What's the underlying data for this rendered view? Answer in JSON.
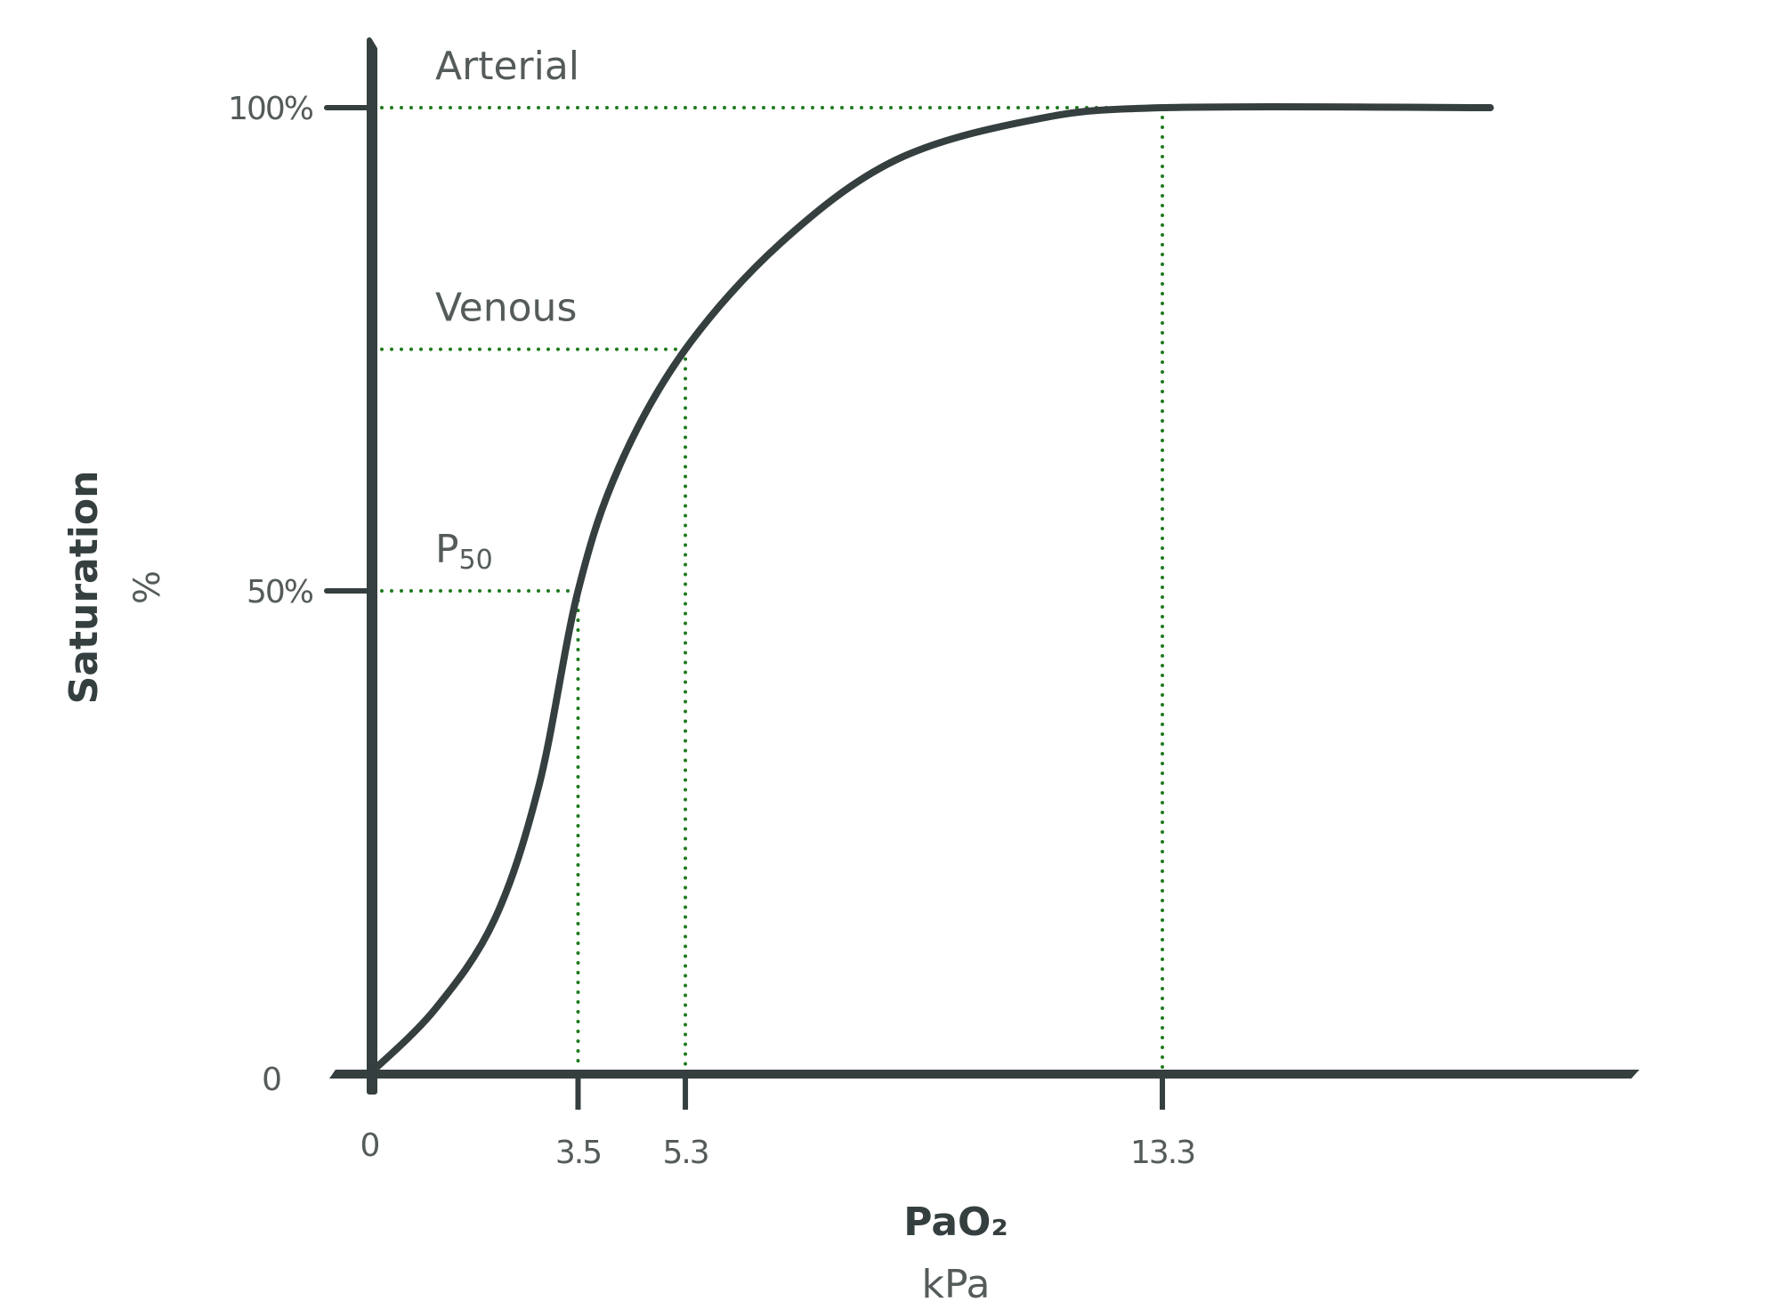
{
  "chart_data": {
    "type": "line",
    "x_label": "PaO₂",
    "x_unit": "kPa",
    "y_label": "Saturation",
    "y_unit": "%",
    "x": [
      0,
      1.1,
      2.1,
      2.85,
      3.5,
      4.2,
      5.3,
      6.9,
      8.8,
      11.1,
      13.3,
      18.8
    ],
    "series": [
      {
        "color": "#353f3f",
        "values": [
          0,
          6.7,
          16,
          30,
          50,
          63,
          75,
          86,
          94.5,
          98.7,
          100,
          100
        ]
      }
    ],
    "xlim": [
      0,
      21.3
    ],
    "ylim": [
      0,
      107
    ],
    "xticks": [
      0,
      3.5,
      5.3,
      13.3
    ],
    "yticks": [
      0,
      {
        "value": 50,
        "label": "50%"
      },
      {
        "value": 100,
        "label": "100%"
      }
    ],
    "grid": false,
    "annotations": [
      {
        "label": "Arterial",
        "x": 13.3,
        "y": 100
      },
      {
        "label": "Venous",
        "x": 5.3,
        "y": 75
      },
      {
        "label": "P",
        "label_sub": "50",
        "x": 3.5,
        "y": 50
      }
    ],
    "annotation_color": "#1f7a1f"
  }
}
